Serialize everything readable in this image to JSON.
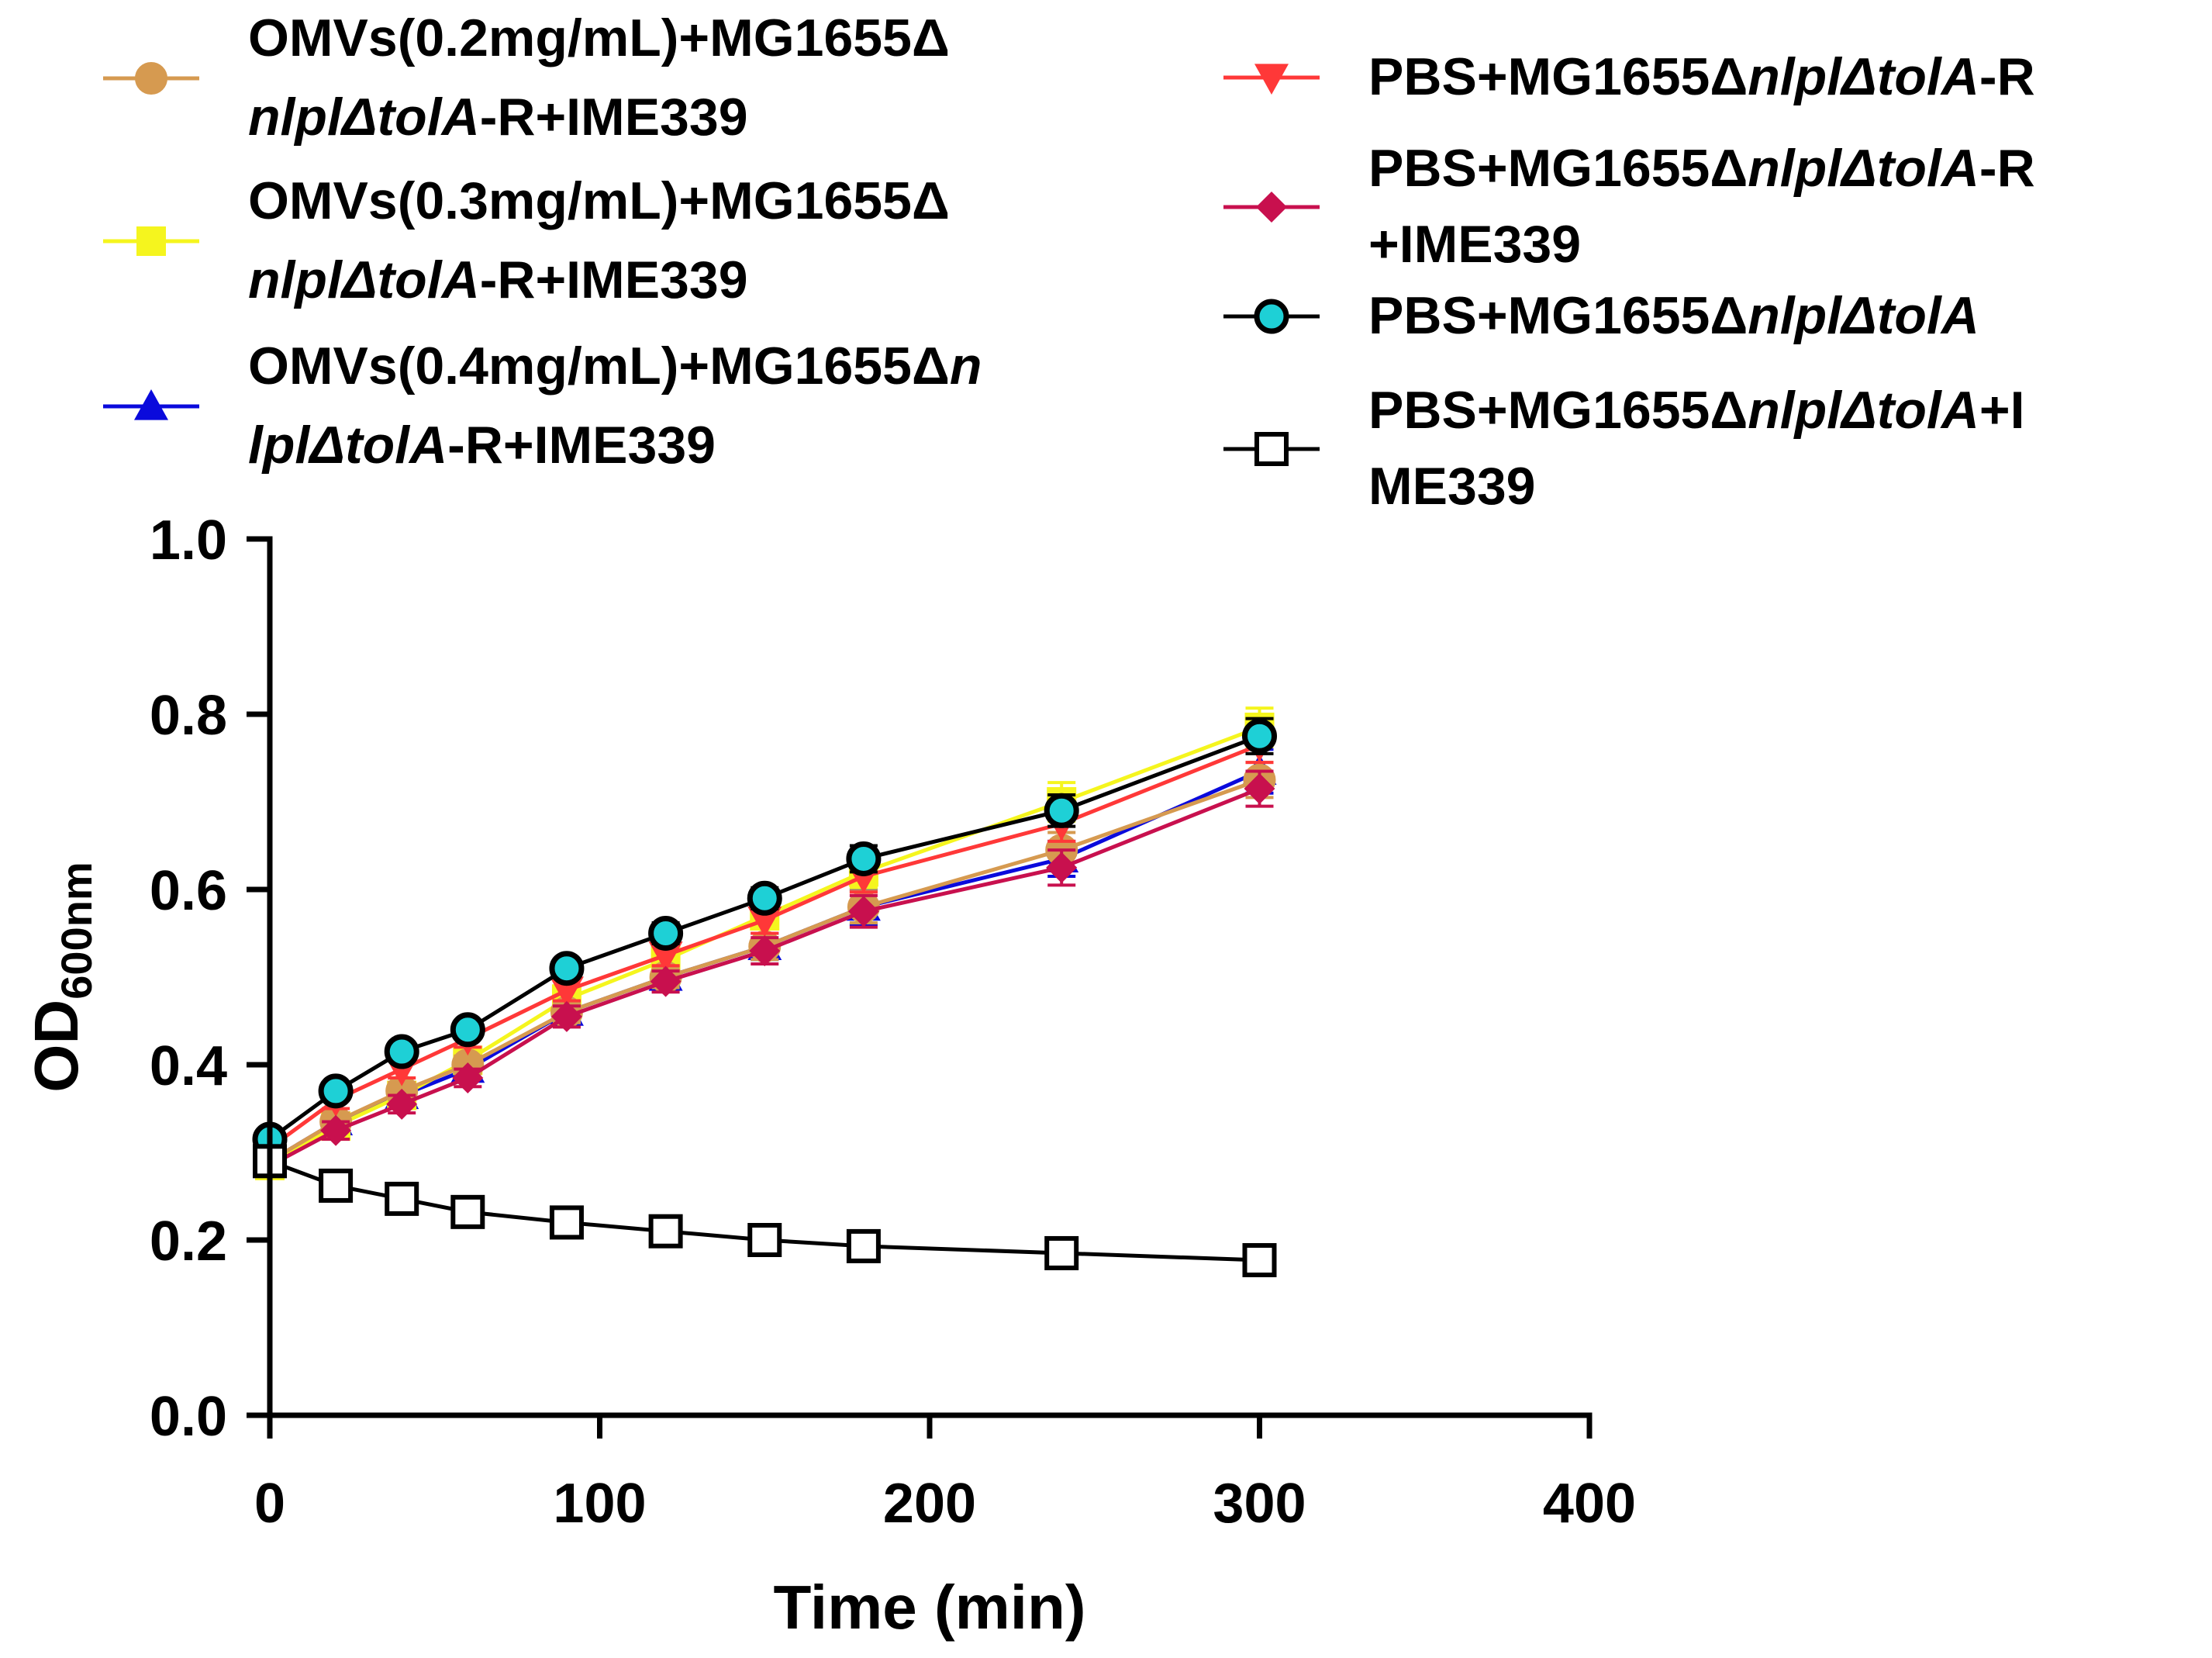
{
  "chart_data": {
    "type": "line",
    "title": "",
    "xlabel": "Time (min)",
    "ylabel": {
      "main": "OD",
      "subscript": "600nm"
    },
    "xlim": [
      0,
      400
    ],
    "ylim": [
      0,
      1.0
    ],
    "xticks": [
      "0",
      "100",
      "200",
      "300",
      "400"
    ],
    "yticks": [
      "0.0",
      "0.2",
      "0.4",
      "0.6",
      "0.8",
      "1.0"
    ],
    "xtick_values": [
      0,
      100,
      200,
      300,
      400
    ],
    "ytick_values": [
      0,
      0.2,
      0.4,
      0.6,
      0.8,
      1.0
    ],
    "x": [
      0,
      20,
      40,
      60,
      90,
      120,
      150,
      180,
      240,
      300
    ],
    "series": [
      {
        "name": "OMVs(0.4mg/mL)+MG1655ΔnlplΔtolA-R+IME339",
        "legend_lines": [
          [
            {
              "t": "OMVs(0.4mg/mL)+MG1655Δ",
              "i": false
            },
            {
              "t": "n",
              "i": true
            }
          ],
          [
            {
              "t": "lplΔtolA",
              "i": true
            },
            {
              "t": "-R+IME339",
              "i": false
            }
          ]
        ],
        "color": "#0a0adc",
        "marker": "triangle-up",
        "values": [
          0.29,
          0.335,
          0.365,
          0.395,
          0.46,
          0.5,
          0.535,
          0.58,
          0.635,
          0.735
        ],
        "errors": [
          0.01,
          0.01,
          0.01,
          0.01,
          0.012,
          0.012,
          0.015,
          0.02,
          0.02,
          0.025
        ]
      },
      {
        "name": "OMVs(0.3mg/mL)+MG1655ΔnlplΔtolA-R+IME339",
        "legend_lines": [
          [
            {
              "t": "OMVs(0.3mg/mL)+MG1655Δ",
              "i": false
            }
          ],
          [
            {
              "t": "nlplΔtolA",
              "i": true
            },
            {
              "t": "-R+IME339",
              "i": false
            }
          ]
        ],
        "color": "#f5f51e",
        "marker": "square-filled",
        "values": [
          0.285,
          0.33,
          0.365,
          0.405,
          0.475,
          0.52,
          0.57,
          0.62,
          0.7,
          0.785
        ],
        "errors": [
          0.01,
          0.01,
          0.01,
          0.012,
          0.012,
          0.012,
          0.015,
          0.018,
          0.022,
          0.022
        ]
      },
      {
        "name": "OMVs(0.2mg/mL)+MG1655ΔnlplΔtolA-R+IME339",
        "legend_lines": [
          [
            {
              "t": "OMVs(0.2mg/mL)+MG1655Δ",
              "i": false
            }
          ],
          [
            {
              "t": "nlplΔtolA",
              "i": true
            },
            {
              "t": "-R+IME339",
              "i": false
            }
          ]
        ],
        "color": "#d69a50",
        "marker": "circle-filled",
        "values": [
          0.29,
          0.335,
          0.37,
          0.4,
          0.46,
          0.5,
          0.535,
          0.58,
          0.645,
          0.725
        ],
        "errors": [
          0.01,
          0.01,
          0.01,
          0.01,
          0.012,
          0.012,
          0.015,
          0.018,
          0.02,
          0.02
        ]
      },
      {
        "name": "PBS+MG1655ΔnlplΔtolA-R",
        "legend_lines": [
          [
            {
              "t": "PBS+MG1655Δ",
              "i": false
            },
            {
              "t": "nlplΔtolA",
              "i": true
            },
            {
              "t": "-R",
              "i": false
            }
          ]
        ],
        "color": "#ff3838",
        "marker": "triangle-down",
        "values": [
          0.305,
          0.36,
          0.395,
          0.43,
          0.485,
          0.525,
          0.565,
          0.615,
          0.675,
          0.765
        ],
        "errors": [
          0.01,
          0.01,
          0.01,
          0.01,
          0.012,
          0.012,
          0.015,
          0.018,
          0.02,
          0.02
        ]
      },
      {
        "name": "PBS+MG1655ΔnlplΔtolA-R+IME339",
        "legend_lines": [
          [
            {
              "t": "PBS+MG1655Δ",
              "i": false
            },
            {
              "t": "nlplΔtolA",
              "i": true
            },
            {
              "t": "-R",
              "i": false
            }
          ],
          [
            {
              "t": "+IME339",
              "i": false
            }
          ]
        ],
        "color": "#c8104e",
        "marker": "diamond",
        "values": [
          0.285,
          0.325,
          0.355,
          0.385,
          0.455,
          0.495,
          0.53,
          0.575,
          0.625,
          0.715
        ],
        "errors": [
          0.01,
          0.01,
          0.01,
          0.01,
          0.012,
          0.012,
          0.015,
          0.018,
          0.02,
          0.02
        ]
      },
      {
        "name": "PBS+MG1655ΔnlplΔtolA",
        "legend_lines": [
          [
            {
              "t": "PBS+MG1655Δ",
              "i": false
            },
            {
              "t": "nlplΔtolA",
              "i": true
            }
          ]
        ],
        "color": "#000000",
        "fill": "#1ed0d6",
        "marker": "circle-cyan",
        "values": [
          0.315,
          0.37,
          0.415,
          0.44,
          0.51,
          0.55,
          0.59,
          0.635,
          0.69,
          0.775
        ],
        "errors": [
          0.008,
          0.008,
          0.008,
          0.01,
          0.01,
          0.012,
          0.012,
          0.015,
          0.018,
          0.02
        ]
      },
      {
        "name": "PBS+MG1655ΔnlplΔtolA+IME339",
        "legend_lines": [
          [
            {
              "t": "PBS+MG1655Δ",
              "i": false
            },
            {
              "t": "nlplΔtolA",
              "i": true
            },
            {
              "t": "+I",
              "i": false
            }
          ],
          [
            {
              "t": "ME339",
              "i": false
            }
          ]
        ],
        "color": "#000000",
        "fill": "#ffffff",
        "marker": "square-open",
        "values": [
          0.29,
          0.262,
          0.247,
          0.232,
          0.22,
          0.21,
          0.2,
          0.193,
          0.185,
          0.177
        ],
        "errors": [
          0.005,
          0.005,
          0.005,
          0.005,
          0.005,
          0.005,
          0.005,
          0.005,
          0.005,
          0.005
        ]
      }
    ],
    "legend_order_left": [
      2,
      1,
      0
    ],
    "legend_order_right": [
      3,
      4,
      5,
      6
    ],
    "legend_placement": "top"
  }
}
